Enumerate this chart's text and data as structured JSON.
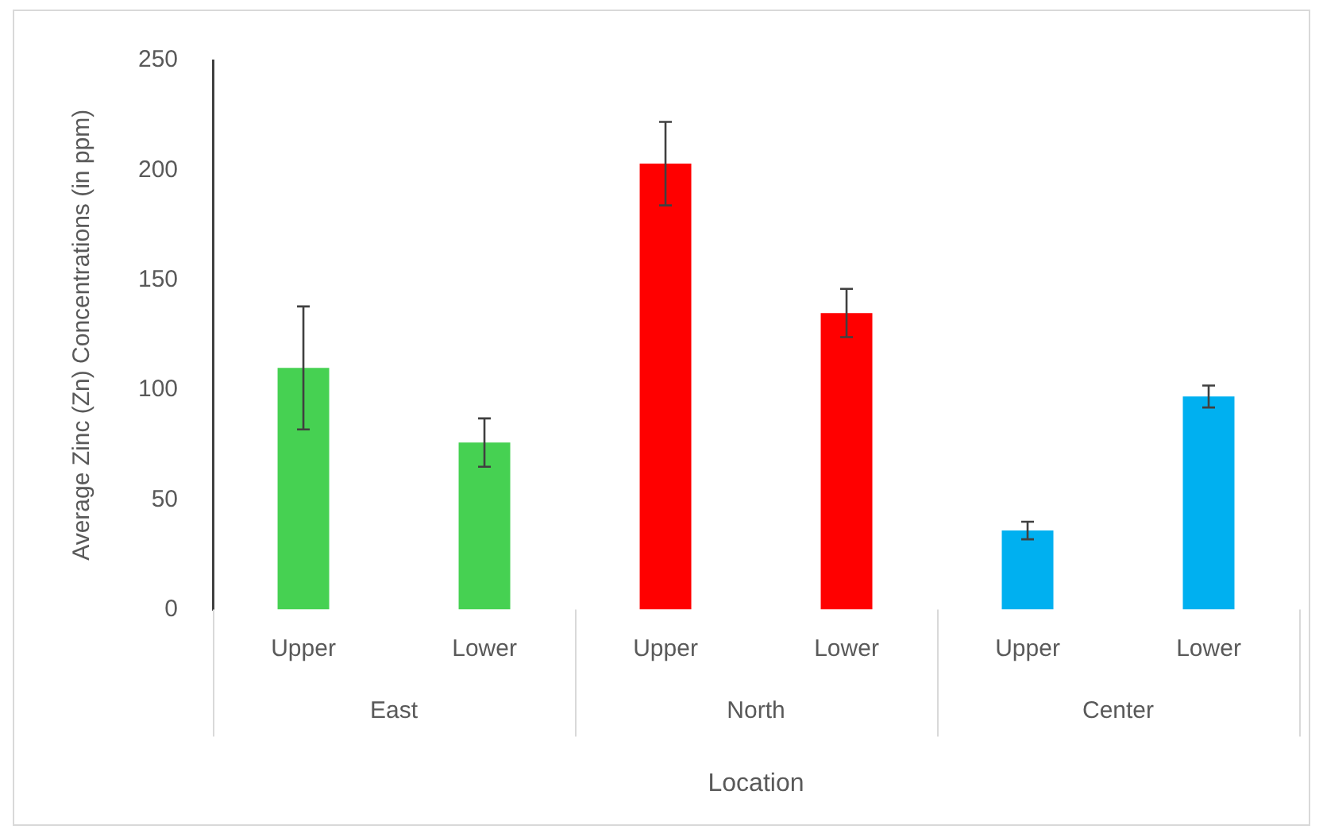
{
  "chart_data": {
    "type": "bar",
    "xlabel": "Location",
    "ylabel": "Average Zinc (Zn) Concentrations (in ppm)",
    "categories": [
      "Upper",
      "Lower",
      "Upper",
      "Lower",
      "Upper",
      "Lower"
    ],
    "values": [
      110,
      76,
      203,
      135,
      36,
      97
    ],
    "colors": [
      "#46d152",
      "#46d152",
      "#ff0000",
      "#ff0000",
      "#00b0f0",
      "#00b0f0"
    ],
    "errors": [
      28,
      11,
      19,
      11,
      4,
      5
    ],
    "annotations": [
      "East",
      "North",
      "Center"
    ],
    "ylim": [
      0,
      250
    ],
    "yticks": [
      0,
      50,
      100,
      150,
      200,
      250
    ],
    "grid": false,
    "legend": false
  }
}
